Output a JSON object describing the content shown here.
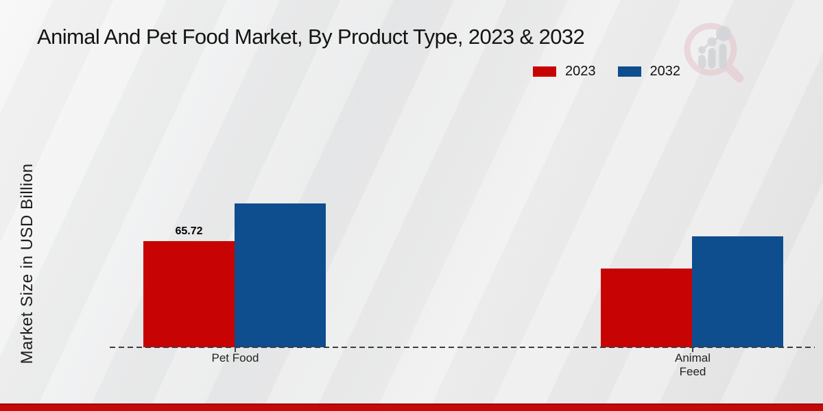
{
  "title": "Animal And Pet Food Market, By Product Type, 2023 & 2032",
  "ylabel": "Market Size in USD Billion",
  "legend": [
    {
      "label": "2023",
      "color": "#c80303"
    },
    {
      "label": "2032",
      "color": "#0e4d8e"
    }
  ],
  "footer": {
    "band_color": "#c70808"
  },
  "watermark_icon": "market-research-future-magnifier-logo",
  "chart_data": {
    "type": "bar",
    "categories": [
      "Pet Food",
      "Animal Feed"
    ],
    "series": [
      {
        "name": "2023",
        "color": "#c80303",
        "values": [
          65.72,
          48.8
        ]
      },
      {
        "name": "2032",
        "color": "#0e4d8e",
        "values": [
          88.9,
          68.7
        ]
      }
    ],
    "annotations": [
      {
        "category": "Pet Food",
        "series": "2023",
        "text": "65.72"
      }
    ],
    "title": "Animal And Pet Food Market, By Product Type, 2023 & 2032",
    "xlabel": "",
    "ylabel": "Market Size in USD Billion",
    "ylim": [
      0,
      100
    ],
    "grid": false,
    "legend_position": "top-right",
    "baseline_style": "dashed"
  }
}
